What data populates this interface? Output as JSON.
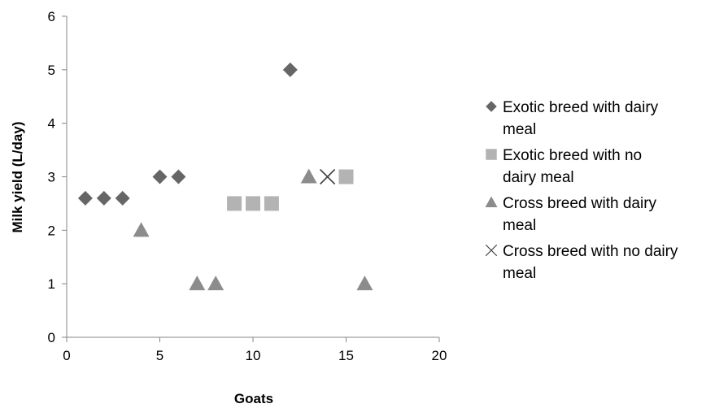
{
  "chart_data": {
    "type": "scatter",
    "title": "",
    "xlabel": "Goats",
    "ylabel": "Milk yield (L/day)",
    "xlim": [
      0,
      20
    ],
    "ylim": [
      0,
      6
    ],
    "x_ticks": [
      "0",
      "5",
      "10",
      "15",
      "20"
    ],
    "y_ticks": [
      "0",
      "1",
      "2",
      "3",
      "4",
      "5",
      "6"
    ],
    "grid": false,
    "legend_position": "right",
    "series": [
      {
        "name": "Exotic breed with dairy meal",
        "legend_lines": [
          "Exotic breed with dairy",
          "meal"
        ],
        "marker": "diamond",
        "color": "#666666",
        "points": [
          [
            1,
            2.6
          ],
          [
            2,
            2.6
          ],
          [
            3,
            2.6
          ],
          [
            5,
            3
          ],
          [
            6,
            3
          ],
          [
            12,
            5
          ]
        ]
      },
      {
        "name": "Exotic breed with no dairy meal",
        "legend_lines": [
          "Exotic breed with no",
          "dairy meal"
        ],
        "marker": "square",
        "color": "#b3b3b3",
        "points": [
          [
            9,
            2.5
          ],
          [
            10,
            2.5
          ],
          [
            11,
            2.5
          ],
          [
            15,
            3
          ]
        ]
      },
      {
        "name": "Cross breed with dairy meal",
        "legend_lines": [
          "Cross breed with dairy",
          "meal"
        ],
        "marker": "triangle",
        "color": "#8c8c8c",
        "points": [
          [
            4,
            2
          ],
          [
            7,
            1
          ],
          [
            8,
            1
          ],
          [
            13,
            3
          ],
          [
            16,
            1
          ]
        ]
      },
      {
        "name": "Cross breed with no dairy meal",
        "legend_lines": [
          "Cross breed with no dairy",
          "meal"
        ],
        "marker": "x",
        "color": "#404040",
        "points": [
          [
            14,
            3
          ]
        ]
      }
    ]
  }
}
